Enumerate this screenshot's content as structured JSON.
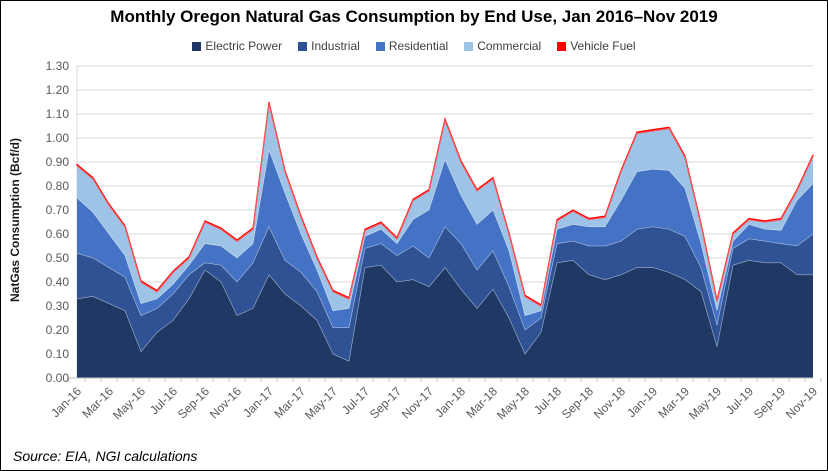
{
  "title": "Monthly Oregon Natural Gas Consumption by End Use, Jan 2016–Nov 2019",
  "source": "Source: EIA, NGI calculations",
  "y_axis": {
    "title": "NatGas Consumption (Bcf/d)",
    "tick_labels": [
      "0.00",
      "0.10",
      "0.20",
      "0.30",
      "0.40",
      "0.50",
      "0.60",
      "0.70",
      "0.80",
      "0.90",
      "1.00",
      "1.10",
      "1.20",
      "1.30"
    ]
  },
  "x_axis": {
    "visible_labels": [
      "Jan-16",
      "Mar-16",
      "May-16",
      "Jul-16",
      "Sep-16",
      "Nov-16",
      "Jan-17",
      "Mar-17",
      "May-17",
      "Jul-17",
      "Sep-17",
      "Nov-17",
      "Jan-18",
      "Mar-18",
      "May-18",
      "Jul-18",
      "Sep-18",
      "Nov-18",
      "Jan-19",
      "Mar-19",
      "May-19",
      "Jul-19",
      "Sep-19",
      "Nov-19"
    ]
  },
  "legend": [
    {
      "label": "Electric Power",
      "color": "#1F3864"
    },
    {
      "label": "Industrial",
      "color": "#2E5294"
    },
    {
      "label": "Residential",
      "color": "#4472C4"
    },
    {
      "label": "Commercial",
      "color": "#9DC3E6"
    },
    {
      "label": "Vehicle Fuel",
      "color": "#FF0000"
    }
  ],
  "colors": {
    "grid": "#D9D9D9",
    "axis": "#BFBFBF",
    "tick_text": "#595959",
    "band_edge": "rgba(255,255,255,0.45)"
  },
  "chart_data": {
    "type": "area",
    "stacked": true,
    "title": "Monthly Oregon Natural Gas Consumption by End Use, Jan 2016–Nov 2019",
    "ylabel": "NatGas Consumption (Bcf/d)",
    "ylim": [
      0,
      1.3
    ],
    "grid": true,
    "legend_position": "top",
    "x": [
      "Jan-16",
      "Feb-16",
      "Mar-16",
      "Apr-16",
      "May-16",
      "Jun-16",
      "Jul-16",
      "Aug-16",
      "Sep-16",
      "Oct-16",
      "Nov-16",
      "Dec-16",
      "Jan-17",
      "Feb-17",
      "Mar-17",
      "Apr-17",
      "May-17",
      "Jun-17",
      "Jul-17",
      "Aug-17",
      "Sep-17",
      "Oct-17",
      "Nov-17",
      "Dec-17",
      "Jan-18",
      "Feb-18",
      "Mar-18",
      "Apr-18",
      "May-18",
      "Jun-18",
      "Jul-18",
      "Aug-18",
      "Sep-18",
      "Oct-18",
      "Nov-18",
      "Dec-18",
      "Jan-19",
      "Feb-19",
      "Mar-19",
      "Apr-19",
      "May-19",
      "Jun-19",
      "Jul-19",
      "Aug-19",
      "Sep-19",
      "Oct-19",
      "Nov-19"
    ],
    "series": [
      {
        "name": "Electric Power",
        "color": "#1F3864",
        "values": [
          0.33,
          0.34,
          0.31,
          0.28,
          0.11,
          0.19,
          0.24,
          0.33,
          0.45,
          0.4,
          0.26,
          0.29,
          0.43,
          0.35,
          0.3,
          0.24,
          0.1,
          0.07,
          0.46,
          0.47,
          0.4,
          0.41,
          0.38,
          0.46,
          0.37,
          0.29,
          0.37,
          0.25,
          0.1,
          0.19,
          0.48,
          0.49,
          0.43,
          0.41,
          0.43,
          0.46,
          0.46,
          0.44,
          0.41,
          0.36,
          0.13,
          0.47,
          0.49,
          0.48,
          0.48,
          0.43,
          0.43
        ]
      },
      {
        "name": "Industrial",
        "color": "#2E5294",
        "values": [
          0.19,
          0.16,
          0.15,
          0.14,
          0.15,
          0.1,
          0.11,
          0.1,
          0.03,
          0.07,
          0.14,
          0.19,
          0.2,
          0.14,
          0.14,
          0.12,
          0.11,
          0.14,
          0.08,
          0.09,
          0.11,
          0.14,
          0.12,
          0.17,
          0.19,
          0.16,
          0.16,
          0.13,
          0.1,
          0.06,
          0.08,
          0.08,
          0.12,
          0.14,
          0.14,
          0.16,
          0.17,
          0.18,
          0.18,
          0.1,
          0.09,
          0.07,
          0.09,
          0.09,
          0.08,
          0.12,
          0.17
        ]
      },
      {
        "name": "Residential",
        "color": "#4472C4",
        "values": [
          0.23,
          0.19,
          0.14,
          0.09,
          0.05,
          0.04,
          0.04,
          0.04,
          0.08,
          0.08,
          0.1,
          0.08,
          0.32,
          0.28,
          0.16,
          0.09,
          0.07,
          0.08,
          0.05,
          0.06,
          0.05,
          0.11,
          0.2,
          0.28,
          0.2,
          0.19,
          0.17,
          0.15,
          0.06,
          0.03,
          0.06,
          0.07,
          0.08,
          0.08,
          0.17,
          0.24,
          0.24,
          0.245,
          0.2,
          0.1,
          0.06,
          0.03,
          0.06,
          0.05,
          0.055,
          0.19,
          0.21
        ]
      },
      {
        "name": "Commercial",
        "color": "#9DC3E6",
        "values": [
          0.135,
          0.14,
          0.12,
          0.12,
          0.09,
          0.03,
          0.05,
          0.03,
          0.09,
          0.07,
          0.07,
          0.06,
          0.195,
          0.09,
          0.07,
          0.05,
          0.08,
          0.04,
          0.025,
          0.025,
          0.02,
          0.08,
          0.08,
          0.165,
          0.14,
          0.14,
          0.13,
          0.07,
          0.08,
          0.02,
          0.035,
          0.055,
          0.03,
          0.04,
          0.12,
          0.16,
          0.16,
          0.175,
          0.13,
          0.08,
          0.04,
          0.03,
          0.02,
          0.03,
          0.045,
          0.04,
          0.115
        ]
      },
      {
        "name": "Vehicle Fuel",
        "color": "#FF0000",
        "values": [
          0.005,
          0.005,
          0.005,
          0.005,
          0.005,
          0.005,
          0.005,
          0.005,
          0.005,
          0.005,
          0.005,
          0.005,
          0.005,
          0.005,
          0.005,
          0.005,
          0.005,
          0.005,
          0.005,
          0.005,
          0.005,
          0.005,
          0.005,
          0.005,
          0.005,
          0.005,
          0.005,
          0.005,
          0.005,
          0.005,
          0.005,
          0.005,
          0.005,
          0.005,
          0.005,
          0.005,
          0.005,
          0.005,
          0.005,
          0.005,
          0.005,
          0.005,
          0.005,
          0.005,
          0.005,
          0.005,
          0.005
        ]
      }
    ]
  }
}
